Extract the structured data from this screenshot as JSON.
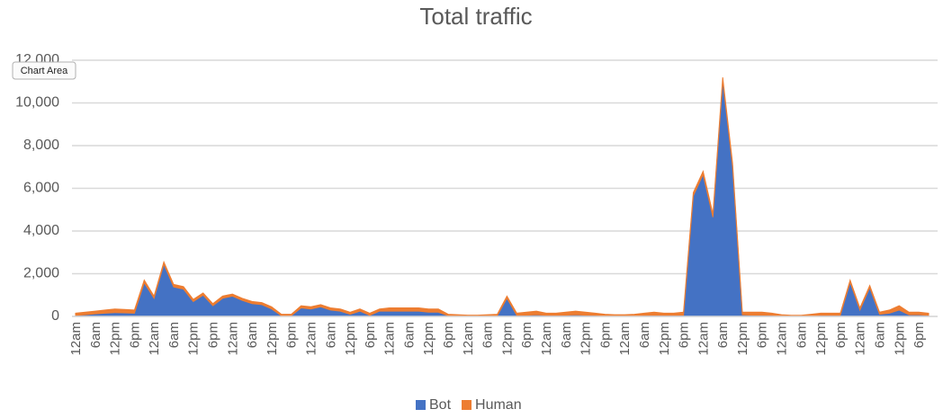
{
  "chart_data": {
    "type": "stacked-area",
    "title": "Total traffic",
    "annotation": "Chart Area",
    "categories": [
      "12am",
      null,
      "6am",
      null,
      "12pm",
      null,
      "6pm",
      null,
      "12am",
      null,
      "6am",
      null,
      "12pm",
      null,
      "6pm",
      null,
      "12am",
      null,
      "6am",
      null,
      "12pm",
      null,
      "6pm",
      null,
      "12am",
      null,
      "6am",
      null,
      "12pm",
      null,
      "6pm",
      null,
      "12am",
      null,
      "6am",
      null,
      "12pm",
      null,
      "6pm",
      null,
      "12am",
      null,
      "6am",
      null,
      "12pm",
      null,
      "6pm",
      null,
      "12am",
      null,
      "6am",
      null,
      "12pm",
      null,
      "6pm",
      null,
      "12am",
      null,
      "6am",
      null,
      "12pm",
      null,
      "6pm",
      null,
      "12am",
      null,
      "6am",
      null,
      "12pm",
      null,
      "6pm",
      null,
      "12am",
      null,
      "6am",
      null,
      "12pm",
      null,
      "6pm",
      null,
      "12am",
      null,
      "6am",
      null,
      "12pm",
      null,
      "6pm",
      null
    ],
    "series": [
      {
        "name": "Bot",
        "color": "#4472c4",
        "values": [
          50,
          80,
          120,
          150,
          180,
          170,
          150,
          1580,
          850,
          2450,
          1380,
          1280,
          700,
          1000,
          500,
          850,
          950,
          750,
          600,
          550,
          350,
          30,
          30,
          400,
          350,
          450,
          300,
          250,
          100,
          250,
          50,
          250,
          250,
          250,
          250,
          250,
          200,
          200,
          30,
          20,
          10,
          10,
          20,
          30,
          850,
          50,
          60,
          80,
          50,
          50,
          60,
          80,
          60,
          50,
          30,
          20,
          20,
          30,
          50,
          60,
          50,
          50,
          60,
          5650,
          6650,
          4650,
          11050,
          7050,
          80,
          60,
          60,
          50,
          20,
          10,
          10,
          30,
          50,
          50,
          50,
          1600,
          300,
          1350,
          100,
          150,
          300,
          80,
          80,
          50
        ]
      },
      {
        "name": "Human",
        "color": "#ed7d31",
        "values": [
          100,
          120,
          130,
          150,
          170,
          160,
          150,
          120,
          100,
          100,
          120,
          120,
          100,
          100,
          100,
          100,
          100,
          100,
          100,
          100,
          100,
          70,
          70,
          100,
          100,
          100,
          100,
          100,
          100,
          100,
          100,
          100,
          150,
          150,
          150,
          150,
          150,
          150,
          70,
          60,
          50,
          50,
          60,
          70,
          100,
          100,
          140,
          170,
          100,
          100,
          140,
          170,
          140,
          100,
          70,
          60,
          60,
          70,
          100,
          140,
          100,
          100,
          140,
          150,
          150,
          150,
          150,
          150,
          120,
          140,
          140,
          100,
          60,
          40,
          40,
          70,
          100,
          100,
          100,
          100,
          100,
          100,
          100,
          150,
          200,
          120,
          120,
          100
        ]
      }
    ],
    "ylim": [
      0,
      12000
    ],
    "yticks": [
      0,
      {
        "value": 2000,
        "label": "2,000"
      },
      {
        "value": 4000,
        "label": "4,000"
      },
      {
        "value": 6000,
        "label": "6,000"
      },
      {
        "value": 8000,
        "label": "8,000"
      },
      {
        "value": 10000,
        "label": "10,000"
      },
      {
        "value": 12000,
        "label": "12,000"
      }
    ],
    "grid": true,
    "legend": "bottom"
  }
}
